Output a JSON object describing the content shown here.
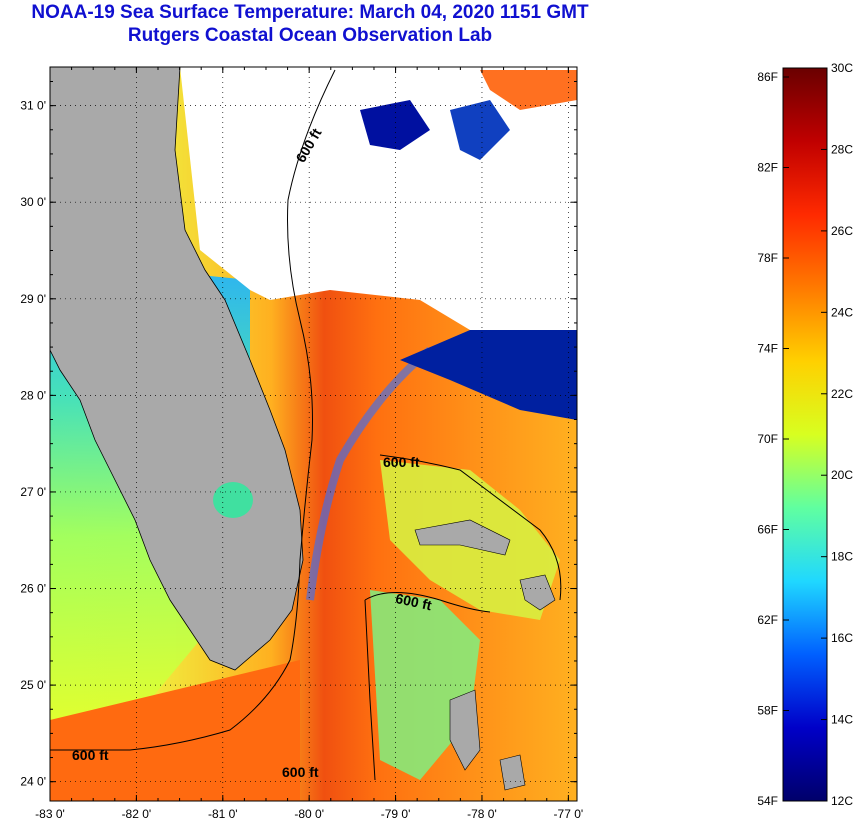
{
  "header": {
    "title": "NOAA-19 Sea Surface Temperature:  March 04, 2020 1151 GMT",
    "subtitle": "Rutgers Coastal Ocean Observation Lab"
  },
  "map": {
    "lat_range": [
      23.8,
      31.4
    ],
    "lon_range": [
      -83,
      -76.9
    ],
    "lat_ticks": [
      {
        "value": 31,
        "label": "31 0'"
      },
      {
        "value": 30,
        "label": "30 0'"
      },
      {
        "value": 29,
        "label": "29 0'"
      },
      {
        "value": 28,
        "label": "28 0'"
      },
      {
        "value": 27,
        "label": "27 0'"
      },
      {
        "value": 26,
        "label": "26 0'"
      },
      {
        "value": 25,
        "label": "25 0'"
      },
      {
        "value": 24,
        "label": "24 0'"
      }
    ],
    "lon_ticks": [
      {
        "value": -83,
        "label": "-83 0'"
      },
      {
        "value": -82,
        "label": "-82 0'"
      },
      {
        "value": -81,
        "label": "-81 0'"
      },
      {
        "value": -80,
        "label": "-80 0'"
      },
      {
        "value": -79,
        "label": "-79 0'"
      },
      {
        "value": -78,
        "label": "-78 0'"
      },
      {
        "value": -77,
        "label": "-77 0'"
      }
    ],
    "contour_labels": [
      {
        "text": "600 ft",
        "id": "north"
      },
      {
        "text": "600 ft",
        "id": "bahamas-north"
      },
      {
        "text": "600 ft",
        "id": "bahamas-south"
      },
      {
        "text": "600 ft",
        "id": "gulf"
      },
      {
        "text": "600 ft",
        "id": "keys"
      }
    ],
    "colors": {
      "land": "#a9a9a9",
      "cloud": "#ffffff",
      "warm": "#e84a10",
      "cold": "#00108a"
    }
  },
  "colorbar": {
    "fahrenheit": [
      "86F",
      "82F",
      "78F",
      "74F",
      "70F",
      "66F",
      "62F",
      "58F",
      "54F"
    ],
    "celsius": [
      "30C",
      "28C",
      "26C",
      "24C",
      "22C",
      "20C",
      "18C",
      "16C",
      "14C",
      "12C"
    ],
    "colors": [
      "#6a0000",
      "#c00000",
      "#ff2a00",
      "#ff7a00",
      "#ffd000",
      "#d8ff20",
      "#60ffa0",
      "#20d8ff",
      "#0060ff",
      "#0000c8",
      "#00006a"
    ]
  }
}
